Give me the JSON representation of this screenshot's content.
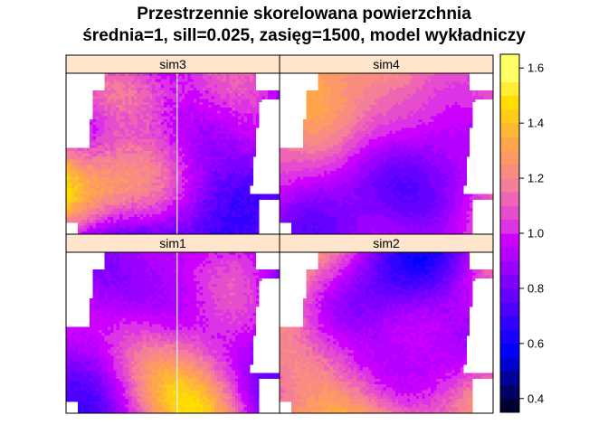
{
  "chart_data": {
    "type": "heatmap",
    "title": "Przestrzennie skorelowana powierzchnia",
    "subtitle": "średnia=1, sill=0.025, zasięg=1500, model wykładniczy",
    "panels": [
      {
        "name": "sim3"
      },
      {
        "name": "sim4"
      },
      {
        "name": "sim1"
      },
      {
        "name": "sim2"
      }
    ],
    "colorbar": {
      "range": [
        0.35,
        1.65
      ],
      "breaks": [
        0.35,
        0.4,
        0.45,
        0.5,
        0.55,
        0.6,
        0.65,
        0.7,
        0.75,
        0.8,
        0.85,
        0.9,
        0.95,
        1.0,
        1.05,
        1.1,
        1.15,
        1.2,
        1.25,
        1.3,
        1.35,
        1.4,
        1.45,
        1.5,
        1.55,
        1.6,
        1.65
      ],
      "ticks": [
        {
          "value": 0.4,
          "label": "0.4"
        },
        {
          "value": 0.6,
          "label": "0.6"
        },
        {
          "value": 0.8,
          "label": "0.8"
        },
        {
          "value": 1.0,
          "label": "1.0"
        },
        {
          "value": 1.2,
          "label": "1.2"
        },
        {
          "value": 1.4,
          "label": "1.4"
        },
        {
          "value": 1.6,
          "label": "1.6"
        }
      ],
      "colors": [
        "#000033",
        "#000066",
        "#000099",
        "#0000CC",
        "#0000FF",
        "#1A00FF",
        "#3300FF",
        "#4D00FF",
        "#6600FF",
        "#8000FF",
        "#9900FF",
        "#B300FF",
        "#CC00FF",
        "#DC33E6",
        "#E64DCC",
        "#EE66B3",
        "#F57F99",
        "#F98C80",
        "#FC9966",
        "#FFA64D",
        "#FFB833",
        "#FFCC1A",
        "#FFDD00",
        "#FFEE33",
        "#FFFF66",
        "#FFFF66"
      ]
    },
    "strip_color": "#FFE5CC"
  }
}
